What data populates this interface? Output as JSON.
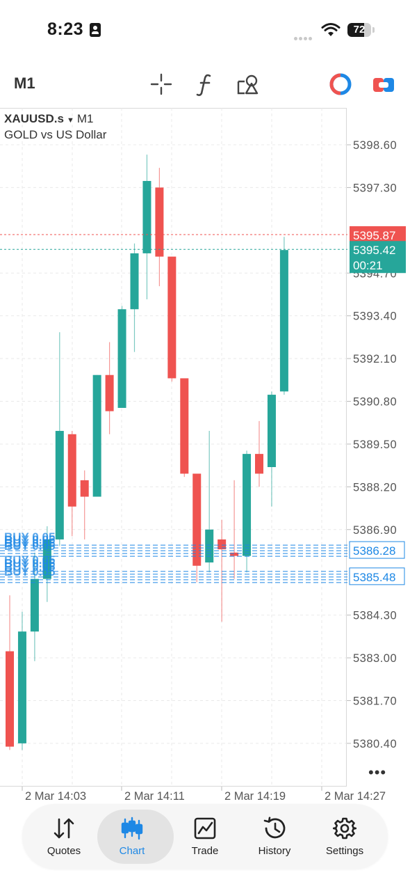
{
  "status_bar": {
    "time": "8:23",
    "battery": "72",
    "battery_level": 0.72
  },
  "toolbar": {
    "timeframe": "M1",
    "icons": [
      "crosshair-icon",
      "function-icon",
      "objects-icon",
      "one-click-trading-icon",
      "trade-panel-icon"
    ]
  },
  "chart": {
    "symbol": "XAUUSD.s",
    "timeframe": "M1",
    "description": "GOLD vs US Dollar",
    "more_label": "•••"
  },
  "chart_data": {
    "type": "candlestick",
    "y_ticks": [
      "5398.60",
      "5397.30",
      "5394.70",
      "5393.40",
      "5392.10",
      "5390.80",
      "5389.50",
      "5388.20",
      "5386.90",
      "5384.30",
      "5383.00",
      "5381.70",
      "5380.40"
    ],
    "ylim": [
      5379.9,
      5399.3
    ],
    "x_ticks": [
      "2 Mar 14:03",
      "2 Mar 14:11",
      "2 Mar 14:19",
      "2 Mar 14:27"
    ],
    "ask_price": "5395.87",
    "bid_price": "5395.42",
    "bar_countdown": "00:21",
    "order_prices": [
      "5386.28",
      "5385.48"
    ],
    "order_labels": [
      "BUY 0.05",
      "BUY 0.05",
      "BUY 0.05",
      "BUY 0.05",
      "BUY 0.05",
      "BUY 0.05",
      "BUY 0.05",
      "BUY 0.05"
    ],
    "colors": {
      "up": "#26a69a",
      "down": "#ef5350",
      "ask": "#ef5350",
      "bid": "#26a69a",
      "order": "#1e88e5",
      "grid": "#e9e9e9"
    },
    "candles": [
      {
        "o": 5383.2,
        "h": 5384.9,
        "l": 5380.2,
        "c": 5380.3
      },
      {
        "o": 5380.4,
        "h": 5384.4,
        "l": 5380.2,
        "c": 5383.8
      },
      {
        "o": 5383.8,
        "h": 5386.2,
        "l": 5382.9,
        "c": 5385.4
      },
      {
        "o": 5385.4,
        "h": 5387.0,
        "l": 5384.7,
        "c": 5386.6
      },
      {
        "o": 5386.6,
        "h": 5392.9,
        "l": 5386.4,
        "c": 5389.9
      },
      {
        "o": 5389.8,
        "h": 5389.9,
        "l": 5386.7,
        "c": 5387.6
      },
      {
        "o": 5388.4,
        "h": 5388.7,
        "l": 5386.6,
        "c": 5387.9
      },
      {
        "o": 5387.9,
        "h": 5391.6,
        "l": 5387.9,
        "c": 5391.6
      },
      {
        "o": 5391.6,
        "h": 5392.6,
        "l": 5389.8,
        "c": 5390.5
      },
      {
        "o": 5390.6,
        "h": 5393.7,
        "l": 5390.6,
        "c": 5393.6
      },
      {
        "o": 5393.6,
        "h": 5395.6,
        "l": 5392.3,
        "c": 5395.3
      },
      {
        "o": 5395.3,
        "h": 5398.3,
        "l": 5393.9,
        "c": 5397.5
      },
      {
        "o": 5397.3,
        "h": 5397.9,
        "l": 5394.3,
        "c": 5395.2
      },
      {
        "o": 5395.2,
        "h": 5395.2,
        "l": 5391.4,
        "c": 5391.5
      },
      {
        "o": 5391.5,
        "h": 5391.5,
        "l": 5388.5,
        "c": 5388.6
      },
      {
        "o": 5388.6,
        "h": 5388.6,
        "l": 5385.3,
        "c": 5385.8
      },
      {
        "o": 5385.9,
        "h": 5389.9,
        "l": 5385.6,
        "c": 5386.9
      },
      {
        "o": 5386.6,
        "h": 5387.2,
        "l": 5384.1,
        "c": 5386.3
      },
      {
        "o": 5386.2,
        "h": 5388.4,
        "l": 5385.4,
        "c": 5386.1
      },
      {
        "o": 5386.1,
        "h": 5389.3,
        "l": 5385.6,
        "c": 5389.2
      },
      {
        "o": 5389.2,
        "h": 5390.2,
        "l": 5388.2,
        "c": 5388.6
      },
      {
        "o": 5388.8,
        "h": 5391.1,
        "l": 5387.6,
        "c": 5391.0
      },
      {
        "o": 5391.1,
        "h": 5395.8,
        "l": 5391.0,
        "c": 5395.4
      }
    ]
  },
  "bottom_nav": {
    "items": [
      {
        "label": "Quotes",
        "active": false
      },
      {
        "label": "Chart",
        "active": true
      },
      {
        "label": "Trade",
        "active": false
      },
      {
        "label": "History",
        "active": false
      },
      {
        "label": "Settings",
        "active": false
      }
    ]
  }
}
